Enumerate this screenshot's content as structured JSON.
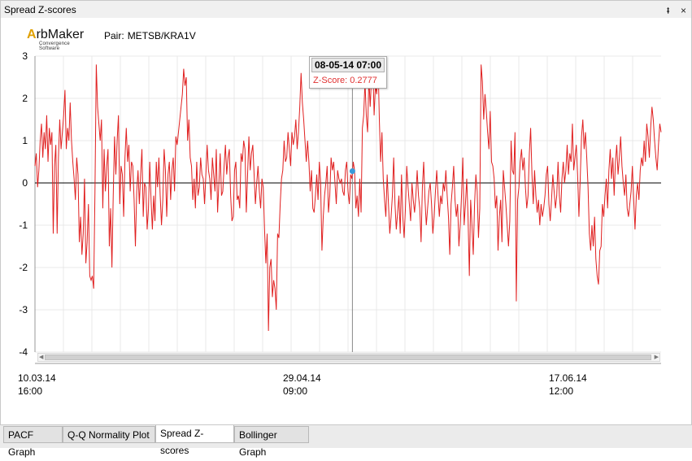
{
  "window": {
    "title": "Spread Z-scores",
    "pin_glyph": "⭻",
    "close_glyph": "×"
  },
  "logo": {
    "prefix": "A",
    "name": "rbMaker",
    "tagline": "Convergence Software"
  },
  "pair": {
    "label": "Pair:",
    "value": "METSB/KRA1V"
  },
  "tooltip": {
    "date": "08-05-14 07:00",
    "series_label": "Z-Score:",
    "value": "0.2777"
  },
  "tabs": [
    {
      "label": "PACF Graph",
      "active": false
    },
    {
      "label": "Q-Q Normality Plot",
      "active": false
    },
    {
      "label": "Spread Z-scores",
      "active": true
    },
    {
      "label": "Bollinger Graph",
      "active": false
    }
  ],
  "chart_data": {
    "type": "line",
    "ylim": [
      -4,
      3
    ],
    "yticks": [
      "3",
      "2",
      "1",
      "0",
      "-1",
      "-2",
      "-3",
      "-4"
    ],
    "xticks": [
      {
        "date": "10.03.14",
        "time": "16:00"
      },
      {
        "date": "29.04.14",
        "time": "09:00"
      },
      {
        "date": "17.06.14",
        "time": "12:00"
      }
    ],
    "grid": true,
    "zero_line": true,
    "colors": {
      "series": "#e02020",
      "zero": "#000000",
      "grid": "#e8e8e8",
      "marker": "#3a9ad9"
    },
    "hover": {
      "x": 0.507,
      "y": 0.2777
    },
    "series": [
      {
        "values": [
          0.4,
          0.7,
          -0.1,
          0.3,
          1.0,
          1.4,
          0.6,
          1.2,
          0.8,
          1.6,
          0.5,
          1.3,
          0.9,
          1.2,
          -1.2,
          0.4,
          0.9,
          -1.2,
          0.6,
          1.5,
          0.8,
          1.2,
          1.6,
          2.2,
          0.8,
          1.3,
          1.0,
          1.9,
          1.0,
          0.5,
          0.1,
          -0.4,
          0.6,
          0.2,
          -1.4,
          -0.8,
          -1.7,
          -1.2,
          0.1,
          -1.9,
          -1.4,
          -0.5,
          -2.2,
          -2.3,
          -2.2,
          -2.5,
          -0.2,
          2.8,
          1.8,
          1.4,
          1.0,
          1.5,
          -0.6,
          0.8,
          -0.2,
          0.4,
          0.8,
          -1.5,
          -0.6,
          -2.0,
          -0.3,
          1.1,
          0.2,
          1.0,
          1.6,
          -0.5,
          0.4,
          0.2,
          -0.8,
          0.6,
          1.3,
          0.5,
          0.9,
          -0.2,
          0.5,
          0.4,
          -0.4,
          -1.5,
          -0.2,
          0.3,
          -0.5,
          0.2,
          0.8,
          -0.8,
          0.0,
          -0.1,
          -1.1,
          -0.6,
          0.5,
          -0.4,
          -1.1,
          -0.3,
          -0.9,
          0.5,
          -0.1,
          0.6,
          -0.3,
          -1.0,
          -0.4,
          0.8,
          0.3,
          -0.8,
          0.2,
          0.5,
          -0.4,
          0.3,
          0.6,
          -0.2,
          1.1,
          0.9,
          1.2,
          1.5,
          1.8,
          2.1,
          2.7,
          2.3,
          2.5,
          1.0,
          1.5,
          0.6,
          0.4,
          -0.4,
          0.1,
          -0.6,
          0.5,
          -0.3,
          -0.1,
          0.6,
          0.2,
          0.1,
          -0.5,
          0.2,
          0.9,
          0.3,
          0.1,
          -0.4,
          0.6,
          0.2,
          -0.2,
          0.8,
          -0.7,
          0.0,
          0.7,
          -0.3,
          -0.2,
          0.4,
          0.9,
          0.2,
          0.6,
          0.8,
          -0.3,
          -0.9,
          -0.8,
          0.3,
          0.5,
          -0.4,
          -0.3,
          -0.6,
          0.7,
          0.5,
          1.0,
          0.8,
          -0.7,
          0.2,
          1.1,
          0.3,
          0.7,
          0.9,
          0.2,
          -0.5,
          0.0,
          0.4,
          -0.2,
          -0.6,
          0.1,
          -0.1,
          -1.1,
          -1.9,
          -1.2,
          -3.5,
          -2.0,
          -1.8,
          -2.7,
          -2.3,
          -2.5,
          -3.0,
          -1.2,
          -1.3,
          -0.5,
          0.1,
          0.3,
          1.0,
          0.5,
          0.6,
          1.2,
          0.8,
          0.4,
          1.2,
          0.9,
          1.1,
          1.5,
          0.8,
          1.2,
          1.8,
          2.6,
          1.9,
          1.5,
          1.0,
          0.5,
          1.0,
          0.5,
          -0.2,
          0.3,
          -0.6,
          -0.7,
          -0.3,
          0.2,
          -0.4,
          0.5,
          0.0,
          -1.6,
          -0.8,
          -0.3,
          0.0,
          0.4,
          -0.7,
          -0.3,
          0.6,
          0.3,
          0.5,
          0.0,
          -0.5,
          0.3,
          0.1,
          0.0,
          0.1,
          -0.2,
          -0.3,
          0.3,
          0.5,
          -0.2,
          -0.5,
          0.2,
          0.1,
          0.5,
          0.3,
          -0.6,
          -0.3,
          -0.8,
          0.1,
          -0.7,
          1.3,
          1.6,
          2.4,
          1.6,
          1.2,
          2.5,
          1.8,
          2.5,
          2.8,
          1.6,
          2.3,
          2.1,
          2.9,
          1.5,
          0.5,
          1.2,
          0.1,
          -0.4,
          -0.8,
          0.2,
          -0.5,
          -1.2,
          -0.8,
          -0.3,
          0.6,
          -0.5,
          -1.1,
          -0.7,
          -0.3,
          -1.2,
          0.2,
          -0.8,
          -1.3,
          -0.6,
          0.4,
          -0.1,
          -0.5,
          -0.9,
          0.0,
          -0.4,
          -0.7,
          -0.3,
          0.3,
          -0.3,
          -0.6,
          -1.4,
          -0.1,
          0.5,
          -0.4,
          -1.0,
          -0.6,
          -0.2,
          0.0,
          -0.5,
          -1.2,
          -0.8,
          -0.2,
          0.3,
          -0.3,
          -0.8,
          -0.3,
          -0.5,
          0.0,
          -0.2,
          0.3,
          -0.3,
          -0.8,
          -1.7,
          -0.5,
          -0.1,
          0.4,
          -0.4,
          -0.8,
          -0.5,
          -1.5,
          -1.0,
          -0.3,
          0.6,
          -1.0,
          -0.5,
          0.1,
          -0.8,
          -2.2,
          -0.4,
          -1.0,
          -1.7,
          -0.5,
          0.2,
          -0.2,
          -1.3,
          -0.6,
          2.8,
          2.4,
          1.5,
          2.1,
          1.7,
          1.2,
          0.8,
          1.7,
          0.5,
          0.4,
          0.1,
          -0.6,
          -0.3,
          -1.6,
          -0.8,
          -0.4,
          -1.4,
          0.3,
          -0.1,
          -0.5,
          -1.0,
          -1.5,
          -0.9,
          1.0,
          0.3,
          0.2,
          1.2,
          -2.8,
          -0.4,
          -0.1,
          0.5,
          0.8,
          0.3,
          0.6,
          -0.1,
          -0.6,
          -0.3,
          0.7,
          1.3,
          0.2,
          -0.5,
          0.3,
          -0.3,
          -0.7,
          -0.4,
          -1.0,
          -0.5,
          -0.8,
          -0.6,
          -0.3,
          0.2,
          0.4,
          -0.5,
          -0.9,
          -0.4,
          0.2,
          -0.2,
          -0.6,
          -0.3,
          0.5,
          -0.3,
          -0.7,
          0.1,
          0.5,
          0.0,
          0.3,
          0.9,
          0.2,
          0.7,
          0.5,
          1.4,
          0.3,
          0.6,
          0.9,
          0.2,
          -0.8,
          0.1,
          1.1,
          1.5,
          0.8,
          1.2,
          0.6,
          -0.1,
          -1.2,
          -1.6,
          -1.0,
          -1.5,
          -0.8,
          -1.8,
          -2.2,
          -2.4,
          -1.6,
          -1.5,
          -0.5,
          -0.8,
          -0.3,
          0.1,
          -0.6,
          0.3,
          0.8,
          0.1,
          0.6,
          -0.3,
          0.5,
          0.9,
          0.2,
          0.6,
          1.1,
          0.4,
          0.0,
          -0.3,
          0.2,
          -0.6,
          -0.8,
          -0.5,
          -0.2,
          0.4,
          -0.4,
          -1.1,
          -0.3,
          0.0,
          -0.4,
          0.3,
          0.6,
          0.4,
          1.0,
          0.5,
          1.4,
          1.1,
          0.6,
          1.3,
          1.8,
          1.5,
          1.0,
          0.6,
          0.3,
          0.9,
          1.4,
          1.2
        ]
      }
    ]
  }
}
